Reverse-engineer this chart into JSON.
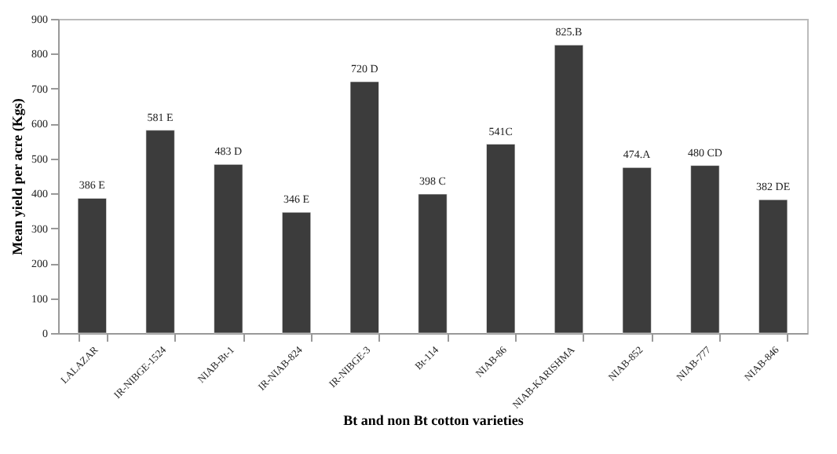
{
  "chart_data": {
    "type": "bar",
    "xlabel": "Bt and non Bt cotton varieties",
    "ylabel": "Mean yield per acre (Kgs)",
    "categories": [
      "LALAZAR",
      "IR-NIBGE-1524",
      "NIAB-Bt-1",
      "IR-NIAB-824",
      "IR-NIBGE-3",
      "Bt-114",
      "NIAB-86",
      "NIAB-KARISHMA",
      "NIAB-852",
      "NIAB-777",
      "NIAB-846"
    ],
    "values": [
      386,
      581,
      483,
      346,
      720,
      398,
      541,
      825,
      474,
      480,
      382
    ],
    "value_labels": [
      "386 E",
      "581 E",
      "483 D",
      "346 E",
      "720 D",
      "398 C",
      "541C",
      "825.B",
      "474.A",
      "480 CD",
      "382 DE"
    ],
    "color": "#3c3c3c",
    "ylim": [
      0,
      900
    ],
    "yticks": [
      0,
      100,
      200,
      300,
      400,
      500,
      600,
      700,
      800,
      900
    ],
    "grid": false
  }
}
